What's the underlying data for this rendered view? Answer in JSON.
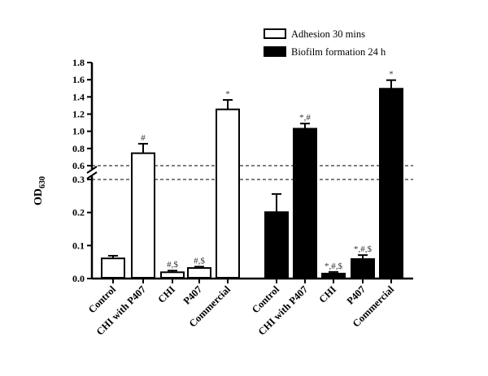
{
  "chart_data": {
    "type": "bar",
    "title": "",
    "xlabel": "",
    "ylabel": "OD",
    "ylabel_subscript": "630",
    "y_axis_break": true,
    "lower_segment": {
      "ylim": [
        0.0,
        0.3
      ],
      "ticks": [
        "0.0",
        "0.1",
        "0.2",
        "0.3"
      ]
    },
    "upper_segment": {
      "ylim": [
        0.6,
        1.8
      ],
      "ticks": [
        "0.6",
        "0.8",
        "1.0",
        "1.2",
        "1.4",
        "1.6",
        "1.8"
      ]
    },
    "groups": [
      {
        "name": "Adhesion 30 mins",
        "fill": "#ffffff",
        "stroke": "#000000",
        "categories": [
          "Control",
          "CHI with P407",
          "CHI",
          "P407",
          "Commercial"
        ],
        "values": [
          0.061,
          0.745,
          0.019,
          0.032,
          1.255
        ],
        "errors": [
          0.008,
          0.11,
          0.005,
          0.004,
          0.11
        ],
        "annotations": [
          "",
          "#",
          "#,$",
          "#,$",
          "*"
        ]
      },
      {
        "name": "Biofilm formation 24 h",
        "fill": "#000000",
        "stroke": "#000000",
        "categories": [
          "Control",
          "CHI with P407",
          "CHI",
          "P407",
          "Commercial"
        ],
        "values": [
          0.201,
          1.03,
          0.015,
          0.059,
          1.495
        ],
        "errors": [
          0.055,
          0.06,
          0.005,
          0.012,
          0.1
        ],
        "annotations": [
          "",
          "*,#",
          "*,#,$",
          "*,#,$",
          "*"
        ]
      }
    ],
    "legend": {
      "placement": "top-right",
      "entries": [
        "Adhesion 30 mins",
        "Biofilm formation 24 h"
      ]
    }
  }
}
